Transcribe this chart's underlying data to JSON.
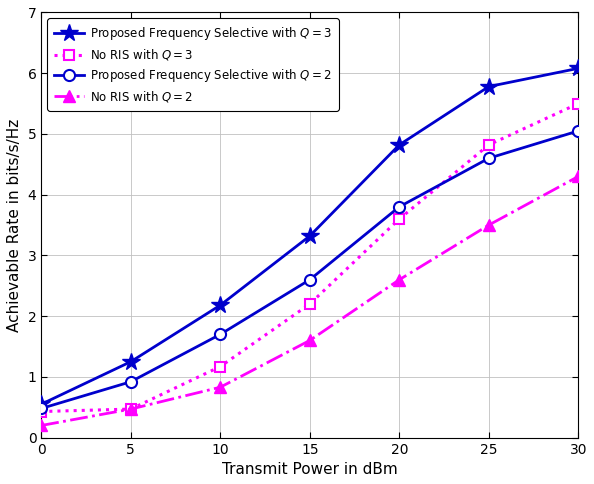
{
  "x": [
    0,
    5,
    10,
    15,
    20,
    25,
    30
  ],
  "proposed_q3": [
    0.55,
    1.25,
    2.18,
    3.32,
    4.82,
    5.78,
    6.08
  ],
  "no_ris_q3": [
    0.43,
    0.47,
    1.17,
    2.2,
    3.6,
    4.82,
    5.5
  ],
  "proposed_q2": [
    0.48,
    0.92,
    1.7,
    2.6,
    3.8,
    4.6,
    5.05
  ],
  "no_ris_q2": [
    0.2,
    0.47,
    0.83,
    1.6,
    2.6,
    3.5,
    4.3
  ],
  "xlabel": "Transmit Power in dBm",
  "ylabel": "Achievable Rate in bits/s/Hz",
  "xlim": [
    0,
    30
  ],
  "ylim": [
    0,
    7
  ],
  "yticks": [
    0,
    1,
    2,
    3,
    4,
    5,
    6,
    7
  ],
  "xticks": [
    0,
    5,
    10,
    15,
    20,
    25,
    30
  ],
  "blue_color": "#0000CC",
  "magenta_color": "#FF00FF",
  "legend_labels": [
    "Proposed Frequency Selective with $Q = 3$",
    "No RIS with $Q = 3$",
    "Proposed Frequency Selective with $Q = 2$",
    "No RIS with $Q = 2$"
  ],
  "figsize": [
    5.94,
    4.84
  ],
  "dpi": 100
}
